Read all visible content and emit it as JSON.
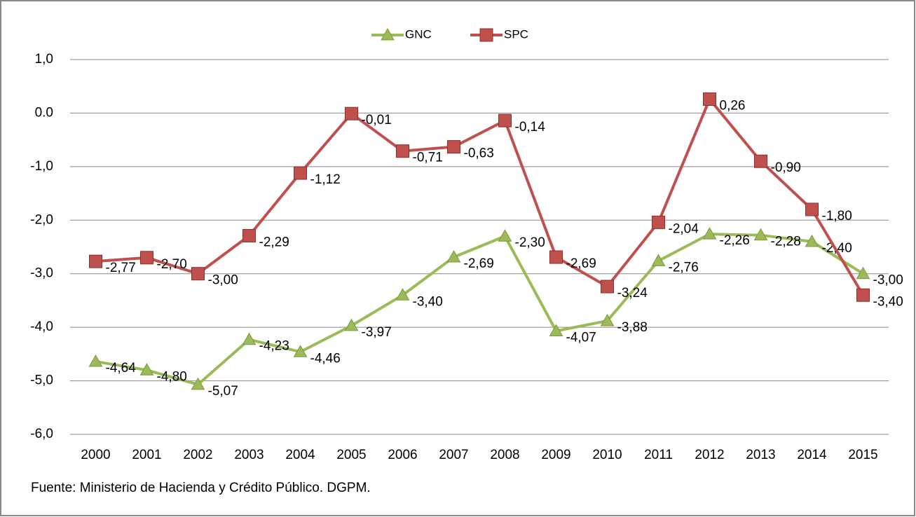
{
  "chart_data": {
    "type": "line",
    "categories": [
      "2000",
      "2001",
      "2002",
      "2003",
      "2004",
      "2005",
      "2006",
      "2007",
      "2008",
      "2009",
      "2010",
      "2011",
      "2012",
      "2013",
      "2014",
      "2015"
    ],
    "series": [
      {
        "name": "GNC",
        "color": "#9bbb59",
        "marker": "triangle",
        "values": [
          -4.64,
          -4.8,
          -5.07,
          -4.23,
          -4.46,
          -3.97,
          -3.4,
          -2.69,
          -2.3,
          -4.07,
          -3.88,
          -2.76,
          -2.26,
          -2.28,
          -2.4,
          -3.0
        ],
        "value_labels": [
          "-4,64",
          "-4,80",
          "-5,07",
          "-4,23",
          "-4,46",
          "-3,97",
          "-3,40",
          "-2,69",
          "-2,30",
          "-4,07",
          "-3,88",
          "-2,76",
          "-2,26",
          "-2,28",
          "-2,40",
          "-3,00"
        ]
      },
      {
        "name": "SPC",
        "color": "#c0504d",
        "marker": "square",
        "values": [
          -2.77,
          -2.7,
          -3.0,
          -2.29,
          -1.12,
          -0.01,
          -0.71,
          -0.63,
          -0.14,
          -2.69,
          -3.24,
          -2.04,
          0.26,
          -0.9,
          -1.8,
          -3.4
        ],
        "value_labels": [
          "-2,77",
          "-2,70",
          "-3,00",
          "-2,29",
          "-1,12",
          "-0,01",
          "-0,71",
          "-0,63",
          "-0,14",
          "-2,69",
          "-3,24",
          "-2,04",
          "0,26",
          "-0,90",
          "-1,80",
          "-3,40"
        ]
      }
    ],
    "ylim": [
      -6,
      1
    ],
    "yticks": [
      {
        "value": -6,
        "label": "-6,0"
      },
      {
        "value": -5,
        "label": "-5,0"
      },
      {
        "value": -4,
        "label": "-4,0"
      },
      {
        "value": -3,
        "label": "-3,0"
      },
      {
        "value": -2,
        "label": "-2,0"
      },
      {
        "value": -1,
        "label": "-1,0"
      },
      {
        "value": 0,
        "label": "0.0"
      },
      {
        "value": 1,
        "label": "1,0"
      }
    ],
    "grid": true,
    "legend": "top",
    "source": "Fuente:  Ministerio de Hacienda y Crédito Público. DGPM."
  }
}
